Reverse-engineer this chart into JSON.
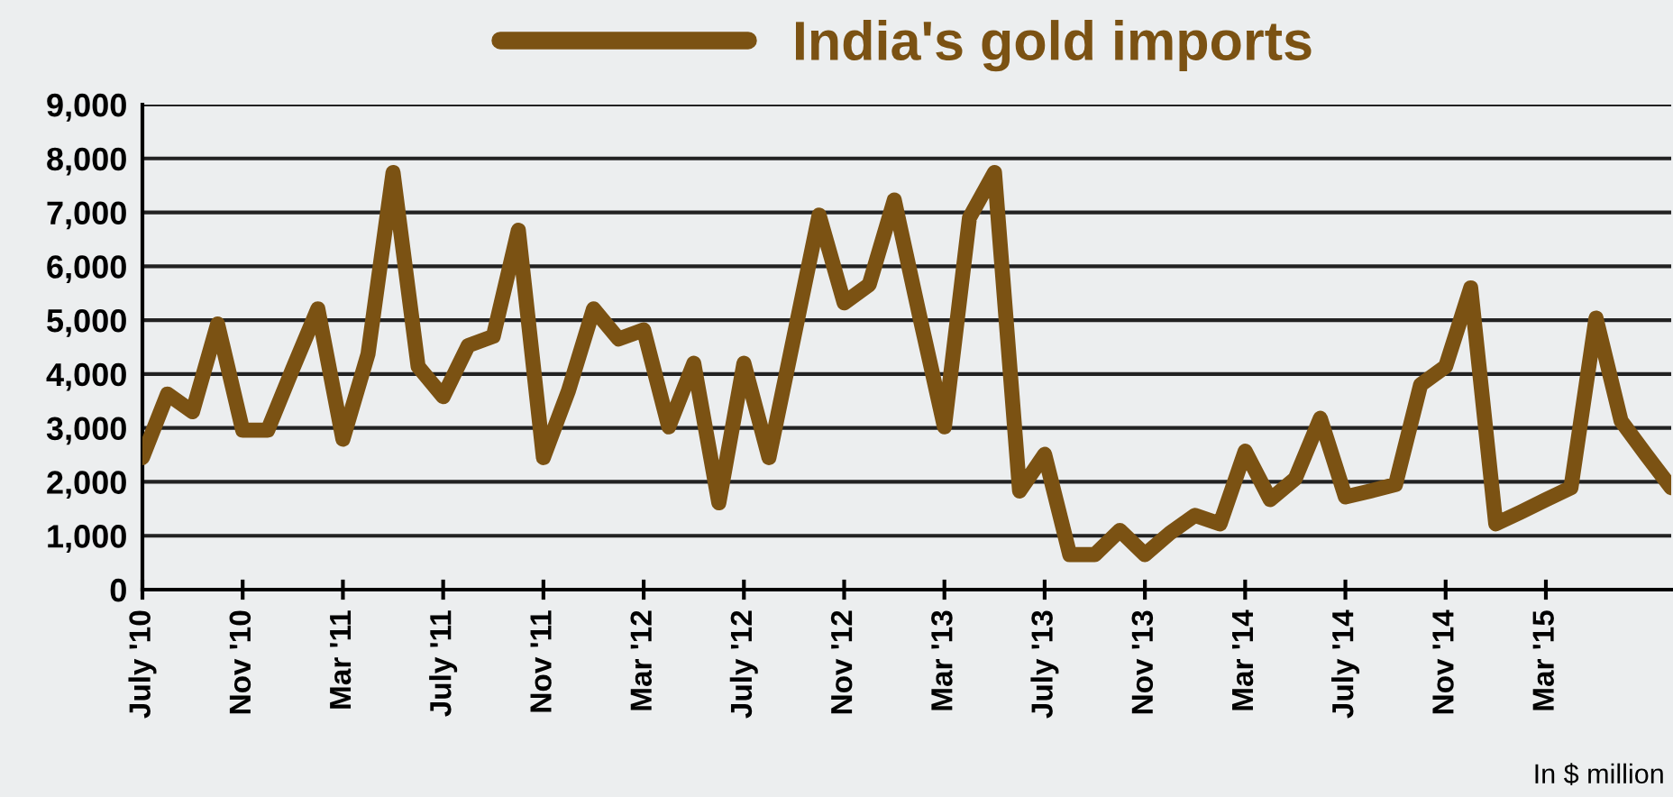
{
  "chart_data": {
    "type": "line",
    "categories": [
      "July '10",
      null,
      null,
      null,
      "Nov '10",
      null,
      null,
      null,
      "Mar '11",
      null,
      null,
      null,
      "July '11",
      null,
      null,
      null,
      "Nov '11",
      null,
      null,
      null,
      "Mar '12",
      null,
      null,
      null,
      "July '12",
      null,
      null,
      null,
      "Nov '12",
      null,
      null,
      null,
      "Mar '13",
      null,
      null,
      null,
      "July '13",
      null,
      null,
      null,
      "Nov '13",
      null,
      null,
      null,
      "Mar '14",
      null,
      null,
      null,
      "July '14",
      null,
      null,
      null,
      "Nov '14",
      null,
      null,
      null,
      "Mar '15",
      null,
      null,
      null,
      null,
      null
    ],
    "series": [
      {
        "name": "India's gold imports",
        "color": "#7b5213",
        "values": [
          2450,
          3630,
          3300,
          4930,
          2960,
          2960,
          4100,
          5210,
          2790,
          4370,
          7740,
          4140,
          3580,
          4530,
          4700,
          6670,
          2450,
          3690,
          5210,
          4650,
          4820,
          3020,
          4200,
          1610,
          4200,
          2450,
          4700,
          6950,
          5320,
          5660,
          7230,
          5100,
          3020,
          6900,
          7740,
          1830,
          2510,
          650,
          650,
          1100,
          650,
          1050,
          1380,
          1220,
          2570,
          1670,
          2060,
          3180,
          1720,
          1830,
          1950,
          3800,
          4140,
          5600,
          1220,
          1440,
          1670,
          1890,
          5040,
          3130,
          2500,
          1890
        ]
      }
    ],
    "ylim": [
      0,
      9000
    ],
    "yticks": [
      0,
      {
        "value": 1000,
        "label": "1,000"
      },
      {
        "value": 2000,
        "label": "2,000"
      },
      {
        "value": 3000,
        "label": "3,000"
      },
      {
        "value": 4000,
        "label": "4,000"
      },
      {
        "value": 5000,
        "label": "5,000"
      },
      {
        "value": 6000,
        "label": "6,000"
      },
      {
        "value": 7000,
        "label": "7,000"
      },
      {
        "value": 8000,
        "label": "8,000"
      },
      {
        "value": 9000,
        "label": "9,000"
      }
    ],
    "grid": "y",
    "legend": "top",
    "marker": "none",
    "line_style": "solid",
    "annotations": [
      "In $ million"
    ]
  }
}
